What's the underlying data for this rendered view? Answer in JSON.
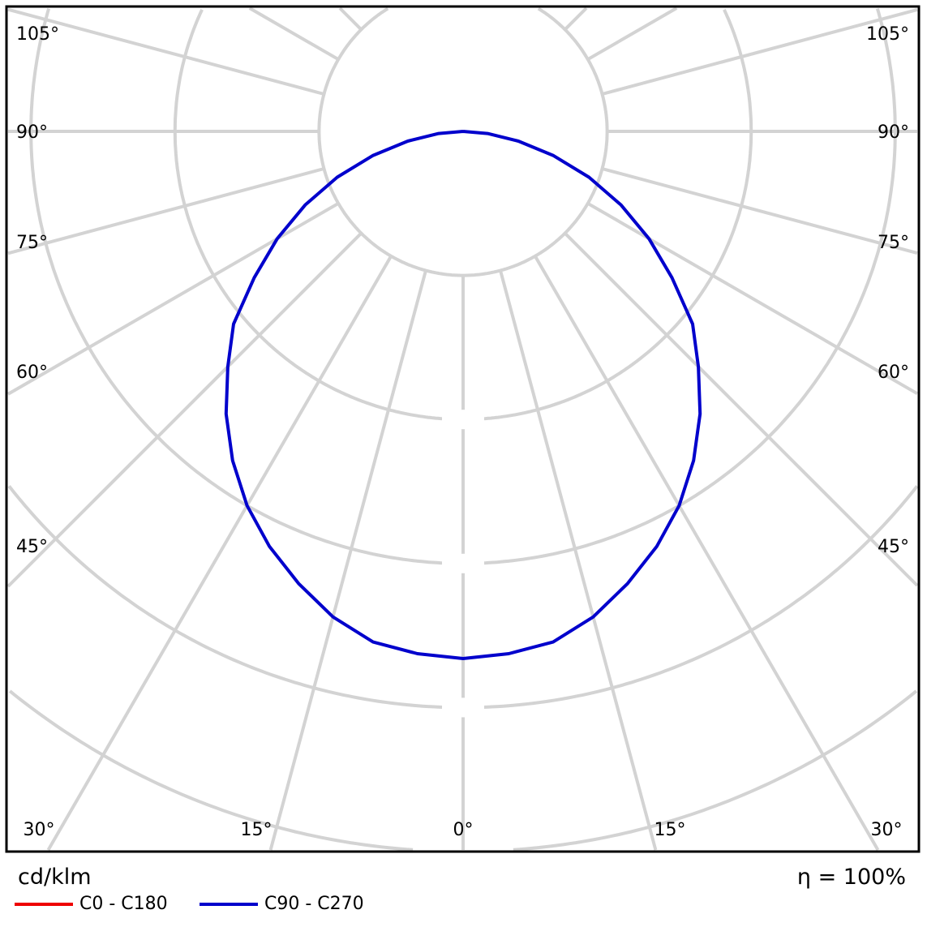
{
  "chart_data": {
    "type": "polar",
    "unit_label": "cd/klm",
    "efficiency_label": "η = 100%",
    "angle_tick_labels": {
      "left": [
        "105°",
        "90°",
        "75°",
        "60°",
        "45°"
      ],
      "right": [
        "105°",
        "90°",
        "75°",
        "60°",
        "45°"
      ],
      "bottom": [
        "30°",
        "15°",
        "0°",
        "15°",
        "30°"
      ]
    },
    "angles_deg": [
      0,
      5,
      10,
      15,
      20,
      25,
      30,
      35,
      40,
      45,
      50,
      55,
      60,
      65,
      70,
      75,
      80,
      85,
      90
    ],
    "radial_unit_note": "intensity in grid-ring units (radial tick labels not printed)",
    "series": [
      {
        "name": "C0 - C180",
        "color": "#ff0000",
        "values": [
          3.66,
          3.64,
          3.6,
          3.49,
          3.34,
          3.18,
          3.0,
          2.79,
          2.56,
          2.31,
          2.08,
          1.77,
          1.49,
          1.21,
          0.93,
          0.65,
          0.39,
          0.17,
          0
        ]
      },
      {
        "name": "C90 - C270",
        "color": "#0000ff",
        "values": [
          3.66,
          3.64,
          3.6,
          3.49,
          3.34,
          3.18,
          3.0,
          2.79,
          2.56,
          2.31,
          2.08,
          1.77,
          1.49,
          1.21,
          0.93,
          0.65,
          0.39,
          0.17,
          0
        ]
      }
    ],
    "grid": true,
    "grid_color": "#d3d3d3",
    "legend_position": "bottom-left"
  }
}
